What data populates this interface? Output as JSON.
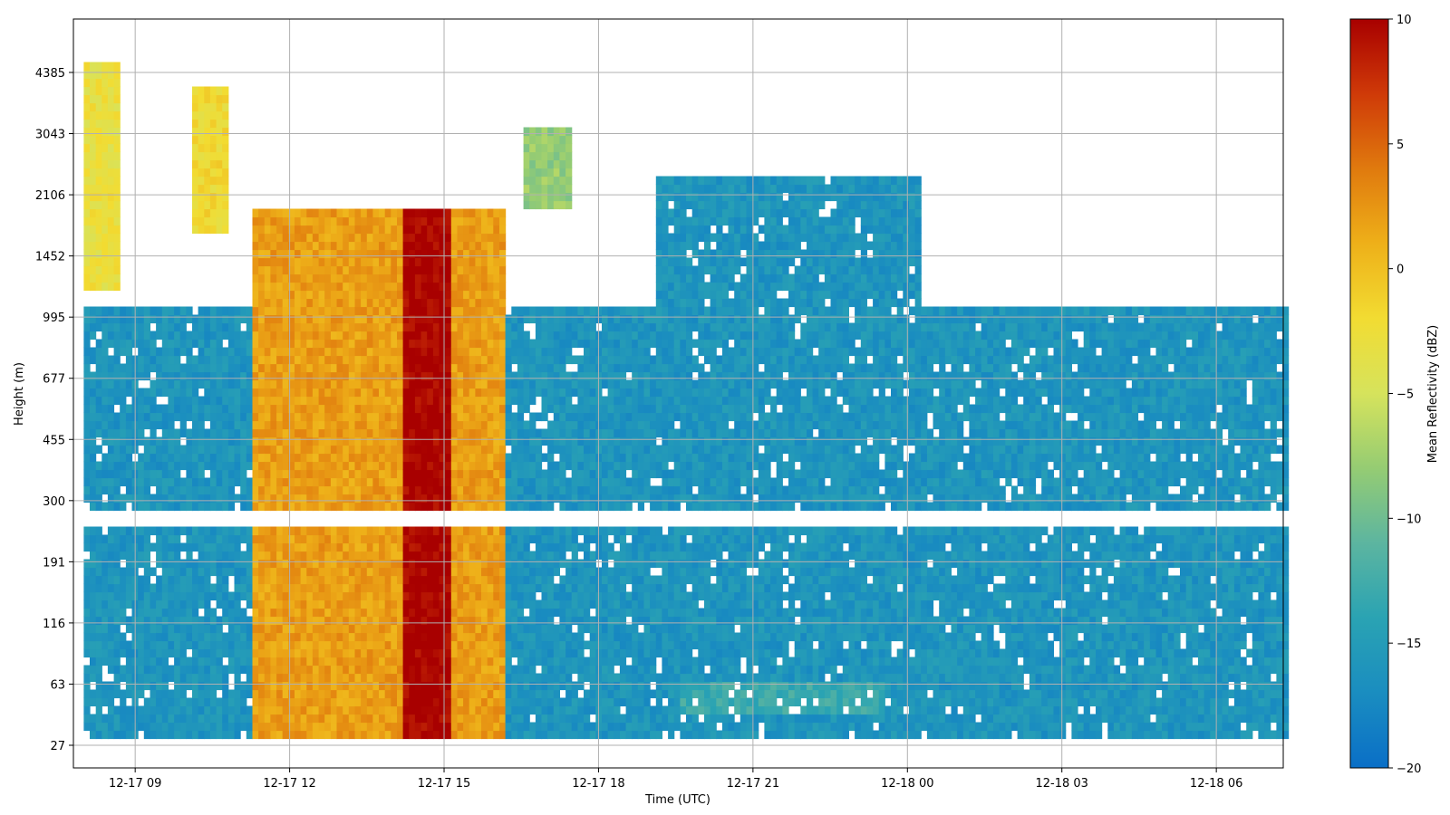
{
  "chart_data": {
    "type": "heatmap",
    "title": "",
    "xlabel": "Time (UTC)",
    "ylabel": "Height (m)",
    "grid": true,
    "x_ticks": [
      "12-17 09",
      "12-17 12",
      "12-17 15",
      "12-17 18",
      "12-17 21",
      "12-18 00",
      "12-18 03",
      "12-18 06"
    ],
    "x_tick_hours": [
      9,
      12,
      15,
      18,
      21,
      24,
      27,
      30
    ],
    "xlim_hours": [
      7.8,
      31.3
    ],
    "y_ticks": [
      "27",
      "63",
      "116",
      "191",
      "300",
      "455",
      "677",
      "995",
      "1452",
      "2106",
      "3043",
      "4385"
    ],
    "colorbar": {
      "label": "Mean Reflectivity (dBZ)",
      "range": [
        -20,
        10
      ],
      "ticks": [
        "10",
        "5",
        "0",
        "−5",
        "−10",
        "−15",
        "−20"
      ],
      "tick_values": [
        10,
        5,
        0,
        -5,
        -10,
        -15,
        -20
      ],
      "colormap": [
        "#0a6fc7",
        "#1a8dc0",
        "#2aa3b3",
        "#5cb5a0",
        "#95cc73",
        "#d6e35c",
        "#f2dc32",
        "#eeb019",
        "#e07a0e",
        "#cf3a08",
        "#a80000"
      ]
    },
    "features": [
      {
        "name": "layer",
        "t": [
          8.0,
          31.3
        ],
        "h": [
          29,
          1050
        ],
        "dbz": -16
      },
      {
        "name": "intense precipitation",
        "t": [
          11.2,
          16.1
        ],
        "h": [
          29,
          1900
        ],
        "dbz": 2
      },
      {
        "name": "core",
        "t": [
          14.2,
          15.1
        ],
        "h": [
          29,
          1900
        ],
        "dbz": 10
      },
      {
        "name": "upper cloud",
        "t": [
          16.5,
          17.4
        ],
        "h": [
          1950,
          3200
        ],
        "dbz": -8
      },
      {
        "name": "upper cloud",
        "t": [
          10.1,
          10.7
        ],
        "h": [
          1700,
          4000
        ],
        "dbz": -2
      },
      {
        "name": "upper cloud",
        "t": [
          8.0,
          8.6
        ],
        "h": [
          1200,
          4700
        ],
        "dbz": -3
      },
      {
        "name": "elevated layer",
        "t": [
          19.0,
          24.2
        ],
        "h": [
          990,
          2300
        ],
        "dbz": -16
      },
      {
        "name": "near-surface",
        "t": [
          19.5,
          23.5
        ],
        "h": [
          40,
          66
        ],
        "dbz": -13
      }
    ]
  }
}
